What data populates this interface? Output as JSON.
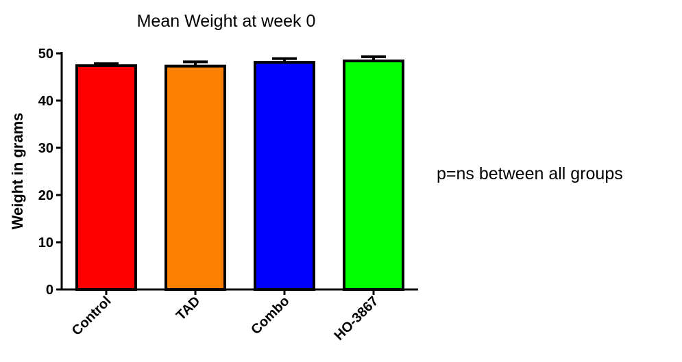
{
  "chart_data": {
    "type": "bar",
    "title": "Mean Weight at week 0",
    "xlabel": "",
    "ylabel": "Weight in grams",
    "categories": [
      "Control",
      "TAD",
      "Combo",
      "HO-3867"
    ],
    "values": [
      47.4,
      47.3,
      48.1,
      48.4
    ],
    "errors": [
      0.4,
      0.9,
      0.8,
      0.9
    ],
    "colors": [
      "#ff0000",
      "#ff8000",
      "#0000ff",
      "#00ff00"
    ],
    "ylim": [
      0,
      50
    ],
    "yticks": [
      "0",
      "10",
      "20",
      "30",
      "40",
      "50"
    ],
    "grid": false,
    "annotation": "p=ns between all groups"
  }
}
